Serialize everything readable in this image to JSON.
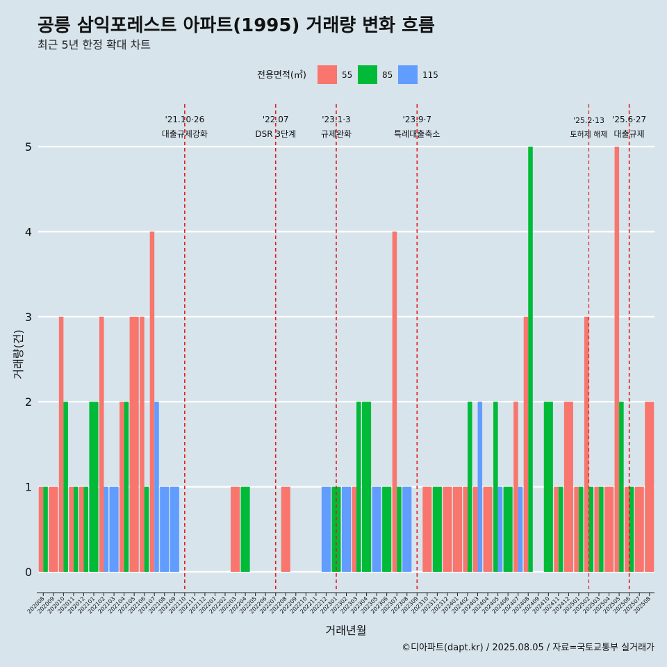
{
  "title": "공릉 삼익포레스트 아파트(1995) 거래량 변화 흐름",
  "subtitle": "최근 5년 한정 확대 차트",
  "legend": {
    "title": "전용면적(㎡)",
    "items": [
      {
        "label": "55",
        "color": "#f8766d"
      },
      {
        "label": "85",
        "color": "#00ba38"
      },
      {
        "label": "115",
        "color": "#619cff"
      }
    ]
  },
  "caption": "©디아파트(dapt.kr) / 2025.08.05 / 자료=국토교통부 실거래가",
  "chart_data": {
    "type": "bar",
    "xlabel": "거래년월",
    "ylabel": "거래량(건)",
    "ylim": [
      0,
      5
    ],
    "yticks": [
      0,
      1,
      2,
      3,
      4,
      5
    ],
    "grid": true,
    "legend_position": "top",
    "categories": [
      "202008",
      "202009",
      "202010",
      "202011",
      "202012",
      "202101",
      "202102",
      "202103",
      "202104",
      "202105",
      "202106",
      "202107",
      "202108",
      "202109",
      "202110",
      "202111",
      "202112",
      "202201",
      "202202",
      "202203",
      "202204",
      "202205",
      "202206",
      "202207",
      "202208",
      "202209",
      "202210",
      "202211",
      "202212",
      "202301",
      "202302",
      "202303",
      "202304",
      "202305",
      "202306",
      "202307",
      "202308",
      "202309",
      "202310",
      "202311",
      "202312",
      "202401",
      "202402",
      "202403",
      "202404",
      "202405",
      "202406",
      "202407",
      "202408",
      "202409",
      "202410",
      "202411",
      "202412",
      "202501",
      "202502",
      "202503",
      "202504",
      "202505",
      "202506",
      "202507",
      "202508"
    ],
    "bars": [
      {
        "month": "202008",
        "series": "55",
        "value": 1
      },
      {
        "month": "202008",
        "series": "85",
        "value": 1
      },
      {
        "month": "202009",
        "series": "55",
        "value": 1
      },
      {
        "month": "202010",
        "series": "55",
        "value": 3
      },
      {
        "month": "202010",
        "series": "85",
        "value": 2
      },
      {
        "month": "202011",
        "series": "55",
        "value": 1
      },
      {
        "month": "202011",
        "series": "85",
        "value": 1
      },
      {
        "month": "202012",
        "series": "55",
        "value": 1
      },
      {
        "month": "202012",
        "series": "85",
        "value": 1
      },
      {
        "month": "202101",
        "series": "85",
        "value": 2
      },
      {
        "month": "202102",
        "series": "55",
        "value": 3
      },
      {
        "month": "202102",
        "series": "115",
        "value": 1
      },
      {
        "month": "202103",
        "series": "115",
        "value": 1
      },
      {
        "month": "202104",
        "series": "55",
        "value": 2
      },
      {
        "month": "202104",
        "series": "85",
        "value": 2
      },
      {
        "month": "202105",
        "series": "55",
        "value": 3
      },
      {
        "month": "202106",
        "series": "55",
        "value": 3
      },
      {
        "month": "202106",
        "series": "85",
        "value": 1
      },
      {
        "month": "202107",
        "series": "55",
        "value": 4
      },
      {
        "month": "202107",
        "series": "115",
        "value": 2
      },
      {
        "month": "202108",
        "series": "115",
        "value": 1
      },
      {
        "month": "202109",
        "series": "115",
        "value": 1
      },
      {
        "month": "202203",
        "series": "55",
        "value": 1
      },
      {
        "month": "202204",
        "series": "85",
        "value": 1
      },
      {
        "month": "202208",
        "series": "55",
        "value": 1
      },
      {
        "month": "202212",
        "series": "115",
        "value": 1
      },
      {
        "month": "202301",
        "series": "85",
        "value": 1
      },
      {
        "month": "202302",
        "series": "115",
        "value": 1
      },
      {
        "month": "202303",
        "series": "55",
        "value": 1
      },
      {
        "month": "202303",
        "series": "85",
        "value": 2
      },
      {
        "month": "202304",
        "series": "85",
        "value": 2
      },
      {
        "month": "202305",
        "series": "115",
        "value": 1
      },
      {
        "month": "202306",
        "series": "85",
        "value": 1
      },
      {
        "month": "202307",
        "series": "55",
        "value": 4
      },
      {
        "month": "202307",
        "series": "85",
        "value": 1
      },
      {
        "month": "202308",
        "series": "115",
        "value": 1
      },
      {
        "month": "202310",
        "series": "55",
        "value": 1
      },
      {
        "month": "202311",
        "series": "85",
        "value": 1
      },
      {
        "month": "202312",
        "series": "55",
        "value": 1
      },
      {
        "month": "202401",
        "series": "55",
        "value": 1
      },
      {
        "month": "202402",
        "series": "55",
        "value": 1
      },
      {
        "month": "202402",
        "series": "85",
        "value": 2
      },
      {
        "month": "202403",
        "series": "55",
        "value": 1
      },
      {
        "month": "202403",
        "series": "115",
        "value": 2
      },
      {
        "month": "202404",
        "series": "55",
        "value": 1
      },
      {
        "month": "202405",
        "series": "85",
        "value": 2
      },
      {
        "month": "202405",
        "series": "115",
        "value": 1
      },
      {
        "month": "202406",
        "series": "85",
        "value": 1
      },
      {
        "month": "202407",
        "series": "55",
        "value": 2
      },
      {
        "month": "202407",
        "series": "115",
        "value": 1
      },
      {
        "month": "202408",
        "series": "55",
        "value": 3
      },
      {
        "month": "202408",
        "series": "85",
        "value": 5
      },
      {
        "month": "202410",
        "series": "85",
        "value": 2
      },
      {
        "month": "202411",
        "series": "55",
        "value": 1
      },
      {
        "month": "202411",
        "series": "85",
        "value": 1
      },
      {
        "month": "202412",
        "series": "55",
        "value": 2
      },
      {
        "month": "202501",
        "series": "55",
        "value": 1
      },
      {
        "month": "202501",
        "series": "85",
        "value": 1
      },
      {
        "month": "202502",
        "series": "55",
        "value": 3
      },
      {
        "month": "202502",
        "series": "85",
        "value": 1
      },
      {
        "month": "202503",
        "series": "55",
        "value": 1
      },
      {
        "month": "202503",
        "series": "85",
        "value": 1
      },
      {
        "month": "202504",
        "series": "55",
        "value": 1
      },
      {
        "month": "202505",
        "series": "55",
        "value": 5
      },
      {
        "month": "202505",
        "series": "85",
        "value": 2
      },
      {
        "month": "202506",
        "series": "55",
        "value": 1
      },
      {
        "month": "202506",
        "series": "85",
        "value": 1
      },
      {
        "month": "202507",
        "series": "55",
        "value": 1
      },
      {
        "month": "202508",
        "series": "55",
        "value": 2
      }
    ],
    "events": [
      {
        "month": "202110",
        "date": "'21.10·26",
        "label": "대출규제강화"
      },
      {
        "month": "202207",
        "date": "'22.07",
        "label": "DSR 3단계"
      },
      {
        "month": "202301",
        "date": "'23.1·3",
        "label": "규제완화"
      },
      {
        "month": "202309",
        "date": "'23.9·7",
        "label": "특례대출축소"
      },
      {
        "month": "202502",
        "date": "'25.2·13",
        "label": "토허제 해제"
      },
      {
        "month": "202506",
        "date": "'25.6·27",
        "label": "대출규제"
      }
    ]
  }
}
